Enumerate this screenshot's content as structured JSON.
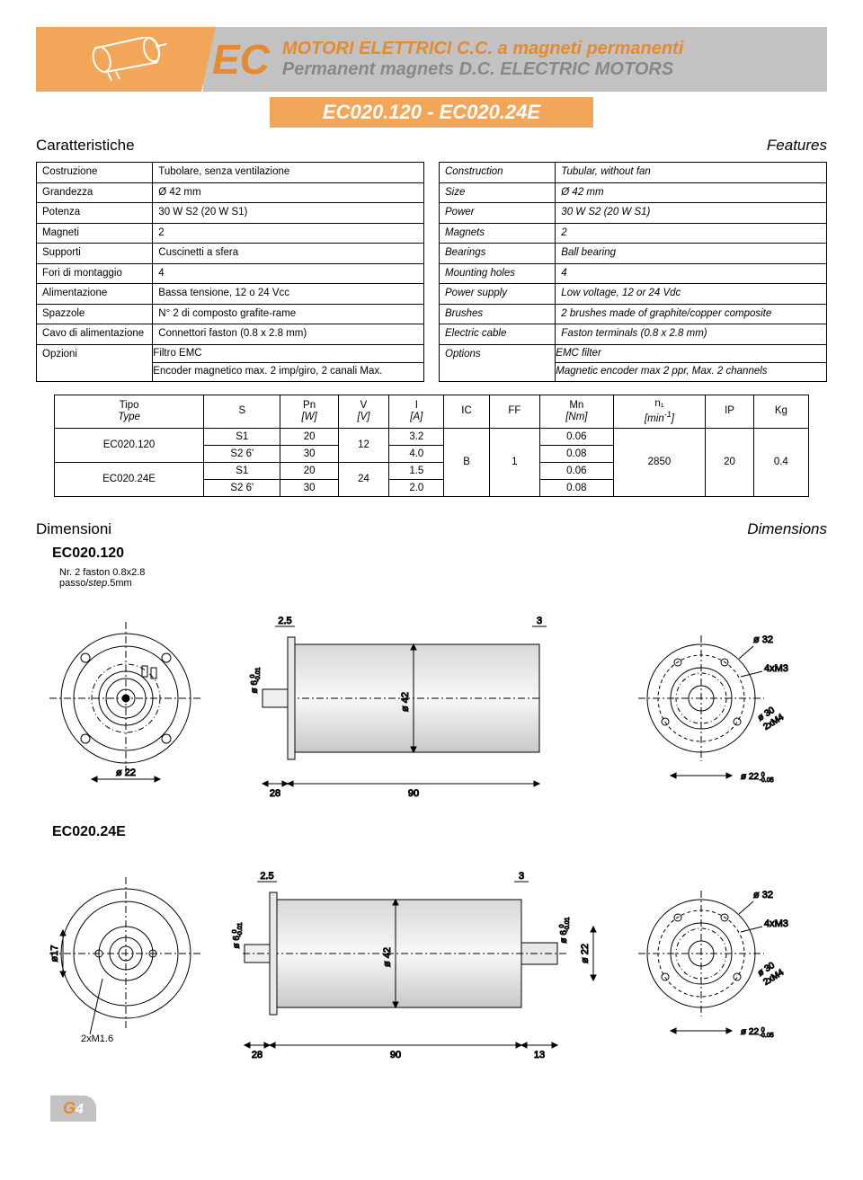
{
  "header": {
    "series": "EC",
    "title_it": "MOTORI ELETTRICI C.C. a magneti permanenti",
    "title_en": "Permanent magnets D.C. ELECTRIC MOTORS",
    "model_range": "EC020.120 - EC020.24E"
  },
  "section_labels": {
    "caratteristiche": "Caratteristiche",
    "features": "Features",
    "dimensioni": "Dimensioni",
    "dimensions": "Dimensions"
  },
  "specs_it": [
    [
      "Costruzione",
      "Tubolare, senza ventilazione"
    ],
    [
      "Grandezza",
      "Ø 42 mm"
    ],
    [
      "Potenza",
      "30 W S2 (20 W  S1)"
    ],
    [
      "Magneti",
      "2"
    ],
    [
      "Supporti",
      "Cuscinetti a sfera"
    ],
    [
      "Fori di montaggio",
      "4"
    ],
    [
      "Alimentazione",
      "Bassa tensione, 12 o 24 Vcc"
    ],
    [
      "Spazzole",
      "N° 2 di composto grafite-rame"
    ],
    [
      "Cavo di alimentazione",
      "Connettori faston (0.8 x 2.8 mm)"
    ],
    [
      "Opzioni",
      "Filtro EMC\nEncoder magnetico max. 2 imp/giro, 2 canali Max."
    ]
  ],
  "specs_en": [
    [
      "Construction",
      "Tubular, without fan"
    ],
    [
      "Size",
      "Ø 42 mm"
    ],
    [
      "Power",
      "30 W S2 (20 W  S1)"
    ],
    [
      "Magnets",
      "2"
    ],
    [
      "Bearings",
      "Ball bearing"
    ],
    [
      "Mounting holes",
      "4"
    ],
    [
      "Power supply",
      "Low voltage, 12 or 24 Vdc"
    ],
    [
      "Brushes",
      "2 brushes made of graphite/copper composite"
    ],
    [
      "Electric cable",
      "Faston terminals (0.8 x 2.8 mm)"
    ],
    [
      "Options",
      "EMC filter\nMagnetic encoder max 2 ppr, Max. 2 channels"
    ]
  ],
  "data_table": {
    "headers": [
      "Tipo\nType",
      "S",
      "Pn\n[W]",
      "V\n[V]",
      "I\n[A]",
      "IC",
      "FF",
      "Mn\n[Nm]",
      "n₁\n[min⁻¹]",
      "IP",
      "Kg"
    ],
    "rows": [
      {
        "type": "EC020.120",
        "s": "S1",
        "pn": "20",
        "v": "12",
        "i": "3.2",
        "ic": "B",
        "ff": "1",
        "mn": "0.06",
        "n1": "2850",
        "ip": "20",
        "kg": "0.4"
      },
      {
        "type": "EC020.120",
        "s": "S2 6'",
        "pn": "30",
        "v": "12",
        "i": "4.0",
        "ic": "B",
        "ff": "1",
        "mn": "0.08",
        "n1": "2850",
        "ip": "20",
        "kg": "0.4"
      },
      {
        "type": "EC020.24E",
        "s": "S1",
        "pn": "20",
        "v": "24",
        "i": "1.5",
        "ic": "B",
        "ff": "1",
        "mn": "0.06",
        "n1": "2850",
        "ip": "20",
        "kg": "0.4"
      },
      {
        "type": "EC020.24E",
        "s": "S2 6'",
        "pn": "30",
        "v": "24",
        "i": "2.0",
        "ic": "B",
        "ff": "1",
        "mn": "0.08",
        "n1": "2850",
        "ip": "20",
        "kg": "0.4"
      }
    ]
  },
  "drawings": {
    "model_a": "EC020.120",
    "model_b": "EC020.24E",
    "faston_note_l1": "Nr. 2 faston 0.8x2.8",
    "faston_note_l2": "passo/step.5mm",
    "dims": {
      "shaft_ext": "2.5",
      "end_gap": "3",
      "flange_od": "ø 32",
      "holes": "4xM3",
      "body_dia": "ø 42",
      "shaft_dia": "ø 6 -0.01",
      "bolt_circle_22": "ø 22",
      "bolt_circle_30": "ø 30",
      "thread_2xM4": "2xM4",
      "tol22": "ø 22 -0.05",
      "len28": "28",
      "len90": "90",
      "len13": "13",
      "dia17": "ø17",
      "thread_2xM16": "2xM1.6",
      "rear_shaft_dia": "ø 6 -0.01",
      "rear22": "ø 22"
    }
  },
  "footer": {
    "g": "G",
    "page": "4"
  },
  "colors": {
    "orange": "#e58a2e",
    "orange_light": "#f2a65a",
    "grey": "#c2c2c2",
    "grey_text": "#888888"
  }
}
